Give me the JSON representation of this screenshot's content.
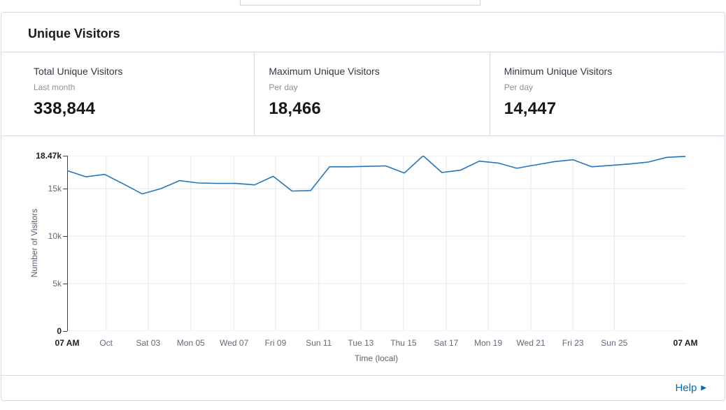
{
  "panel": {
    "title": "Unique Visitors"
  },
  "stats": [
    {
      "label": "Total Unique Visitors",
      "sublabel": "Last month",
      "value": "338,844"
    },
    {
      "label": "Maximum Unique Visitors",
      "sublabel": "Per day",
      "value": "18,466"
    },
    {
      "label": "Minimum Unique Visitors",
      "sublabel": "Per day",
      "value": "14,447"
    }
  ],
  "footer": {
    "help_label": "Help",
    "help_icon": "▶"
  },
  "chart_data": {
    "type": "line",
    "xlabel": "Time (local)",
    "ylabel": "Number of Visitors",
    "ylim": [
      0,
      18466
    ],
    "grid": true,
    "legend": "none",
    "line_color": "#2776BB",
    "axis_color": "#3c4048",
    "grid_color": "#e4e8ee",
    "y_ticks": [
      {
        "label": "0",
        "value": 0,
        "bold": true
      },
      {
        "label": "5k",
        "value": 5000,
        "bold": false
      },
      {
        "label": "10k",
        "value": 10000,
        "bold": false
      },
      {
        "label": "15k",
        "value": 15000,
        "bold": false
      },
      {
        "label": "18.47k",
        "value": 18466,
        "bold": true
      }
    ],
    "x_ticks": [
      {
        "label": "07 AM",
        "pos": 0.0,
        "bold": true
      },
      {
        "label": "Oct",
        "pos": 0.063,
        "bold": false
      },
      {
        "label": "Sat 03",
        "pos": 0.131,
        "bold": false
      },
      {
        "label": "Mon 05",
        "pos": 0.2,
        "bold": false
      },
      {
        "label": "Wed 07",
        "pos": 0.27,
        "bold": false
      },
      {
        "label": "Fri 09",
        "pos": 0.337,
        "bold": false
      },
      {
        "label": "Sun 11",
        "pos": 0.407,
        "bold": false
      },
      {
        "label": "Tue 13",
        "pos": 0.475,
        "bold": false
      },
      {
        "label": "Thu 15",
        "pos": 0.544,
        "bold": false
      },
      {
        "label": "Sat 17",
        "pos": 0.613,
        "bold": false
      },
      {
        "label": "Mon 19",
        "pos": 0.681,
        "bold": false
      },
      {
        "label": "Wed 21",
        "pos": 0.75,
        "bold": false
      },
      {
        "label": "Fri 23",
        "pos": 0.818,
        "bold": false
      },
      {
        "label": "Sun 25",
        "pos": 0.885,
        "bold": false
      },
      {
        "label": "07 AM",
        "pos": 1.0,
        "bold": true
      }
    ],
    "series": [
      {
        "name": "Unique Visitors",
        "values": [
          16900,
          16250,
          16500,
          15500,
          14447,
          15000,
          15850,
          15600,
          15550,
          15550,
          15400,
          16300,
          14750,
          14800,
          17300,
          17300,
          17350,
          17400,
          16650,
          18466,
          16700,
          16950,
          17900,
          17700,
          17150,
          17500,
          17850,
          18050,
          17300,
          17450,
          17600,
          17800,
          18300,
          18400
        ]
      }
    ]
  }
}
